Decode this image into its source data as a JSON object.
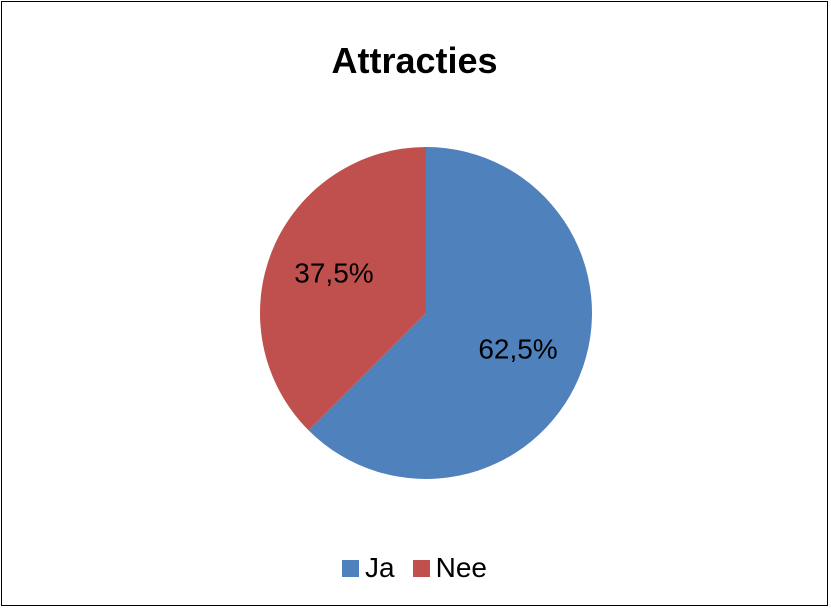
{
  "chart_data": {
    "type": "pie",
    "title": "Attracties",
    "categories": [
      "Ja",
      "Nee"
    ],
    "values": [
      62.5,
      37.5
    ],
    "data_labels": [
      "62,5%",
      "37,5%"
    ],
    "colors": [
      "#4f81bd",
      "#c0504d"
    ],
    "legend_placement": "bottom"
  }
}
